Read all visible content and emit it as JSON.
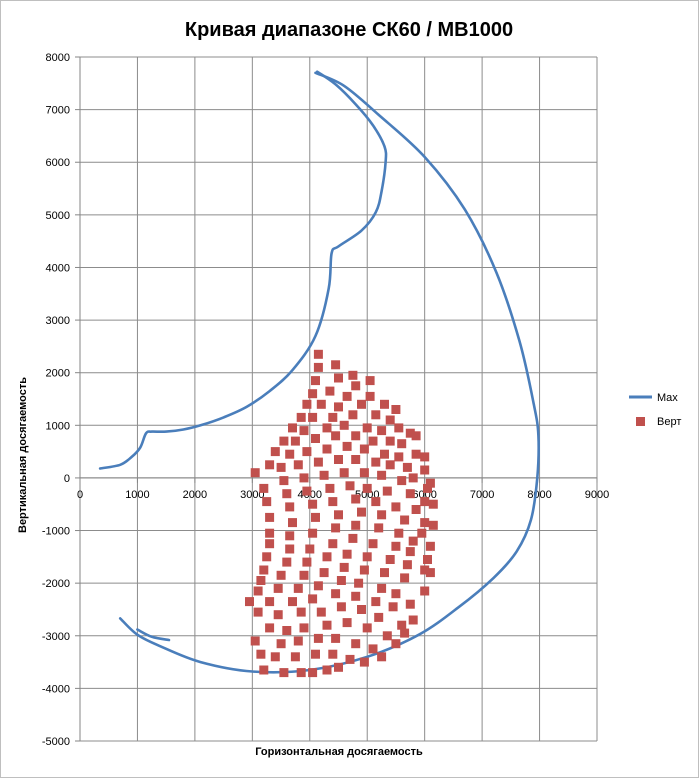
{
  "chart_data": {
    "type": "scatter",
    "title": "Кривая диапазоне СК60 / MB1000",
    "xlabel": "Горизонтальная досягаемость",
    "ylabel": "Вертикальная досягаемость",
    "xlim": [
      0,
      9000
    ],
    "ylim": [
      -5000,
      8000
    ],
    "xticks": [
      0,
      1000,
      2000,
      3000,
      4000,
      5000,
      6000,
      7000,
      8000,
      9000
    ],
    "yticks": [
      -5000,
      -4000,
      -3000,
      -2000,
      -1000,
      0,
      1000,
      2000,
      3000,
      4000,
      5000,
      6000,
      7000,
      8000
    ],
    "grid": true,
    "legend_position": "right",
    "series": [
      {
        "name": "Max",
        "kind": "line",
        "color": "#4a7ebb",
        "points": [
          [
            4100,
            7700
          ],
          [
            4600,
            7450
          ],
          [
            5200,
            6900
          ],
          [
            6000,
            6100
          ],
          [
            6700,
            5100
          ],
          [
            7250,
            3900
          ],
          [
            7650,
            2600
          ],
          [
            7900,
            1400
          ],
          [
            7980,
            800
          ],
          [
            7960,
            0
          ],
          [
            7850,
            -800
          ],
          [
            7600,
            -1400
          ],
          [
            7200,
            -1900
          ],
          [
            6600,
            -2450
          ],
          [
            5900,
            -2980
          ],
          [
            5000,
            -3400
          ],
          [
            4000,
            -3650
          ],
          [
            3000,
            -3680
          ],
          [
            2100,
            -3500
          ],
          [
            1400,
            -3200
          ],
          [
            1000,
            -2980
          ],
          [
            700,
            -2670
          ]
        ]
      },
      {
        "name": "",
        "kind": "line",
        "color": "#4a7ebb",
        "points": [
          [
            350,
            180
          ],
          [
            700,
            250
          ],
          [
            900,
            400
          ],
          [
            1050,
            580
          ],
          [
            1150,
            850
          ],
          [
            1250,
            880
          ],
          [
            1500,
            880
          ],
          [
            1800,
            920
          ],
          [
            2100,
            1000
          ],
          [
            2500,
            1150
          ],
          [
            2900,
            1350
          ],
          [
            3300,
            1650
          ],
          [
            3700,
            2050
          ],
          [
            4100,
            2700
          ],
          [
            4330,
            3600
          ],
          [
            4380,
            4270
          ],
          [
            4500,
            4400
          ],
          [
            4900,
            4700
          ],
          [
            5150,
            5050
          ],
          [
            5250,
            5450
          ],
          [
            5320,
            6000
          ],
          [
            5300,
            6300
          ],
          [
            5100,
            6700
          ],
          [
            4800,
            7100
          ],
          [
            4450,
            7480
          ],
          [
            4130,
            7720
          ]
        ]
      },
      {
        "name": "",
        "kind": "line",
        "color": "#4a7ebb",
        "points": [
          [
            1000,
            -2880
          ],
          [
            1250,
            -3020
          ],
          [
            1550,
            -3080
          ]
        ]
      },
      {
        "name": "Верт",
        "kind": "scatter",
        "color": "#c0504d",
        "points": [
          [
            4150,
            2350
          ],
          [
            4150,
            2100
          ],
          [
            4450,
            2150
          ],
          [
            4750,
            1950
          ],
          [
            5050,
            1850
          ],
          [
            4050,
            1600
          ],
          [
            4100,
            1850
          ],
          [
            4500,
            1900
          ],
          [
            4800,
            1750
          ],
          [
            5050,
            1550
          ],
          [
            3950,
            1400
          ],
          [
            4350,
            1650
          ],
          [
            4650,
            1550
          ],
          [
            5300,
            1400
          ],
          [
            5500,
            1300
          ],
          [
            3850,
            1150
          ],
          [
            4200,
            1400
          ],
          [
            4500,
            1350
          ],
          [
            4900,
            1400
          ],
          [
            5150,
            1200
          ],
          [
            3700,
            950
          ],
          [
            4050,
            1150
          ],
          [
            4400,
            1150
          ],
          [
            4750,
            1200
          ],
          [
            5400,
            1100
          ],
          [
            3550,
            700
          ],
          [
            3900,
            900
          ],
          [
            4300,
            950
          ],
          [
            4600,
            1000
          ],
          [
            5000,
            950
          ],
          [
            5250,
            900
          ],
          [
            5550,
            950
          ],
          [
            5750,
            850
          ],
          [
            5850,
            800
          ],
          [
            3400,
            500
          ],
          [
            3750,
            700
          ],
          [
            4100,
            750
          ],
          [
            4450,
            800
          ],
          [
            4800,
            800
          ],
          [
            5100,
            700
          ],
          [
            5400,
            700
          ],
          [
            5600,
            650
          ],
          [
            5850,
            450
          ],
          [
            6000,
            400
          ],
          [
            3300,
            250
          ],
          [
            3650,
            450
          ],
          [
            3950,
            500
          ],
          [
            4300,
            550
          ],
          [
            4650,
            600
          ],
          [
            4950,
            550
          ],
          [
            5300,
            450
          ],
          [
            5550,
            400
          ],
          [
            5700,
            200
          ],
          [
            6000,
            150
          ],
          [
            3050,
            100
          ],
          [
            3500,
            200
          ],
          [
            3800,
            250
          ],
          [
            4150,
            300
          ],
          [
            4500,
            350
          ],
          [
            4800,
            350
          ],
          [
            5150,
            300
          ],
          [
            5400,
            250
          ],
          [
            5800,
            0
          ],
          [
            3200,
            -200
          ],
          [
            3550,
            -50
          ],
          [
            3900,
            0
          ],
          [
            4250,
            50
          ],
          [
            4600,
            100
          ],
          [
            4950,
            100
          ],
          [
            5250,
            50
          ],
          [
            5600,
            -50
          ],
          [
            6050,
            -200
          ],
          [
            6100,
            -100
          ],
          [
            3250,
            -450
          ],
          [
            3600,
            -300
          ],
          [
            3950,
            -250
          ],
          [
            4350,
            -200
          ],
          [
            4700,
            -150
          ],
          [
            5000,
            -200
          ],
          [
            5350,
            -250
          ],
          [
            5750,
            -300
          ],
          [
            6000,
            -450
          ],
          [
            6150,
            -500
          ],
          [
            3300,
            -750
          ],
          [
            3650,
            -550
          ],
          [
            4050,
            -500
          ],
          [
            4400,
            -450
          ],
          [
            4800,
            -400
          ],
          [
            5150,
            -450
          ],
          [
            5500,
            -550
          ],
          [
            5850,
            -600
          ],
          [
            6000,
            -850
          ],
          [
            6150,
            -900
          ],
          [
            3300,
            -1050
          ],
          [
            3700,
            -850
          ],
          [
            4100,
            -750
          ],
          [
            4500,
            -700
          ],
          [
            4900,
            -650
          ],
          [
            5250,
            -700
          ],
          [
            5650,
            -800
          ],
          [
            5950,
            -1050
          ],
          [
            6100,
            -1300
          ],
          [
            3300,
            -1250
          ],
          [
            3650,
            -1100
          ],
          [
            4050,
            -1050
          ],
          [
            4450,
            -950
          ],
          [
            4800,
            -900
          ],
          [
            5200,
            -950
          ],
          [
            5550,
            -1050
          ],
          [
            5800,
            -1200
          ],
          [
            6050,
            -1550
          ],
          [
            3250,
            -1500
          ],
          [
            3650,
            -1350
          ],
          [
            4000,
            -1350
          ],
          [
            4400,
            -1250
          ],
          [
            4750,
            -1150
          ],
          [
            5100,
            -1250
          ],
          [
            5500,
            -1300
          ],
          [
            5750,
            -1400
          ],
          [
            6000,
            -1750
          ],
          [
            3200,
            -1750
          ],
          [
            3600,
            -1600
          ],
          [
            3950,
            -1600
          ],
          [
            4300,
            -1500
          ],
          [
            4650,
            -1450
          ],
          [
            5000,
            -1500
          ],
          [
            5400,
            -1550
          ],
          [
            5700,
            -1650
          ],
          [
            6100,
            -1800
          ],
          [
            3150,
            -1950
          ],
          [
            3500,
            -1850
          ],
          [
            3900,
            -1850
          ],
          [
            4250,
            -1800
          ],
          [
            4600,
            -1700
          ],
          [
            4950,
            -1750
          ],
          [
            5300,
            -1800
          ],
          [
            5650,
            -1900
          ],
          [
            6000,
            -2150
          ],
          [
            3100,
            -2150
          ],
          [
            3450,
            -2100
          ],
          [
            3800,
            -2100
          ],
          [
            4150,
            -2050
          ],
          [
            4550,
            -1950
          ],
          [
            4850,
            -2000
          ],
          [
            5250,
            -2100
          ],
          [
            5500,
            -2200
          ],
          [
            5750,
            -2400
          ],
          [
            2950,
            -2350
          ],
          [
            3300,
            -2350
          ],
          [
            3700,
            -2350
          ],
          [
            4050,
            -2300
          ],
          [
            4450,
            -2200
          ],
          [
            4800,
            -2250
          ],
          [
            5150,
            -2350
          ],
          [
            5450,
            -2450
          ],
          [
            5800,
            -2700
          ],
          [
            3100,
            -2550
          ],
          [
            3450,
            -2600
          ],
          [
            3850,
            -2550
          ],
          [
            4200,
            -2550
          ],
          [
            4550,
            -2450
          ],
          [
            4900,
            -2500
          ],
          [
            5200,
            -2650
          ],
          [
            5600,
            -2800
          ],
          [
            5650,
            -2950
          ],
          [
            3050,
            -3100
          ],
          [
            3300,
            -2850
          ],
          [
            3600,
            -2900
          ],
          [
            3900,
            -2850
          ],
          [
            4300,
            -2800
          ],
          [
            4650,
            -2750
          ],
          [
            5000,
            -2850
          ],
          [
            5350,
            -3000
          ],
          [
            5500,
            -3150
          ],
          [
            3150,
            -3350
          ],
          [
            3500,
            -3150
          ],
          [
            3800,
            -3100
          ],
          [
            4150,
            -3050
          ],
          [
            4450,
            -3050
          ],
          [
            4800,
            -3150
          ],
          [
            5100,
            -3250
          ],
          [
            5250,
            -3400
          ],
          [
            3200,
            -3650
          ],
          [
            3400,
            -3400
          ],
          [
            3750,
            -3400
          ],
          [
            4100,
            -3350
          ],
          [
            4400,
            -3350
          ],
          [
            4700,
            -3450
          ],
          [
            4950,
            -3500
          ],
          [
            3550,
            -3700
          ],
          [
            3850,
            -3700
          ],
          [
            4050,
            -3700
          ],
          [
            4300,
            -3650
          ],
          [
            4500,
            -3600
          ]
        ]
      }
    ],
    "legend": [
      {
        "label": "Max",
        "marker": "line",
        "color": "#4a7ebb"
      },
      {
        "label": "Верт",
        "marker": "square",
        "color": "#c0504d"
      }
    ]
  }
}
